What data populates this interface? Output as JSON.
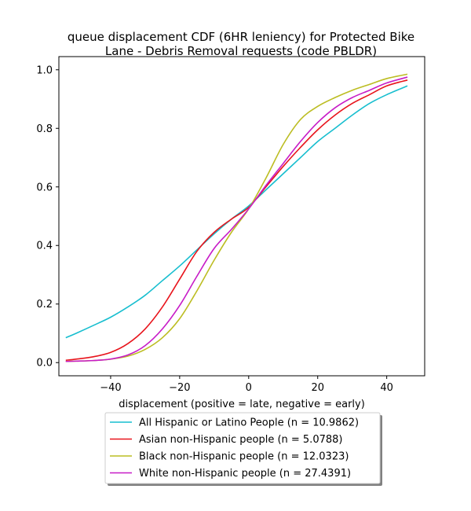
{
  "chart_data": {
    "type": "line",
    "title": [
      "queue displacement CDF (6HR leniency) for Protected Bike",
      "Lane - Debris Removal  requests (code PBLDR)"
    ],
    "xlabel": "displacement (positive = late, negative = early)",
    "ylabel": "",
    "xlim": [
      -55,
      51
    ],
    "ylim": [
      -0.045,
      1.045
    ],
    "xticks": [
      -40,
      -20,
      0,
      20,
      40
    ],
    "yticks": [
      0.0,
      0.2,
      0.4,
      0.6,
      0.8,
      1.0
    ],
    "xtick_labels": [
      "−40",
      "−20",
      "0",
      "20",
      "40"
    ],
    "ytick_labels": [
      "0.0",
      "0.2",
      "0.4",
      "0.6",
      "0.8",
      "1.0"
    ],
    "grid": false,
    "legend_position": "bottom-center-below-axes",
    "x": [
      -53,
      -50,
      -45,
      -40,
      -35,
      -30,
      -25,
      -20,
      -15,
      -10,
      -5,
      0,
      5,
      10,
      15,
      20,
      25,
      30,
      35,
      40,
      46
    ],
    "series": [
      {
        "name": "All Hispanic or Latino People (n = 10.9862)",
        "color": "#17becf",
        "values": [
          0.085,
          0.1,
          0.127,
          0.155,
          0.19,
          0.23,
          0.28,
          0.33,
          0.385,
          0.44,
          0.49,
          0.535,
          0.59,
          0.645,
          0.7,
          0.755,
          0.8,
          0.845,
          0.885,
          0.915,
          0.945
        ]
      },
      {
        "name": "Asian non-Hispanic people (n = 5.0788)",
        "color": "#e8141c",
        "values": [
          0.008,
          0.012,
          0.02,
          0.035,
          0.065,
          0.115,
          0.19,
          0.285,
          0.38,
          0.445,
          0.49,
          0.53,
          0.6,
          0.67,
          0.735,
          0.795,
          0.845,
          0.885,
          0.915,
          0.945,
          0.965
        ]
      },
      {
        "name": "Black non-Hispanic people (n = 12.0323)",
        "color": "#bcbd22",
        "values": [
          0.004,
          0.005,
          0.007,
          0.012,
          0.022,
          0.045,
          0.085,
          0.15,
          0.245,
          0.35,
          0.445,
          0.525,
          0.63,
          0.745,
          0.83,
          0.875,
          0.905,
          0.93,
          0.95,
          0.97,
          0.985
        ]
      },
      {
        "name": "White non-Hispanic people (n = 27.4391)",
        "color": "#c71bc7",
        "values": [
          0.004,
          0.005,
          0.007,
          0.012,
          0.026,
          0.058,
          0.115,
          0.195,
          0.295,
          0.39,
          0.455,
          0.525,
          0.605,
          0.68,
          0.755,
          0.82,
          0.87,
          0.905,
          0.93,
          0.955,
          0.975
        ]
      }
    ]
  }
}
